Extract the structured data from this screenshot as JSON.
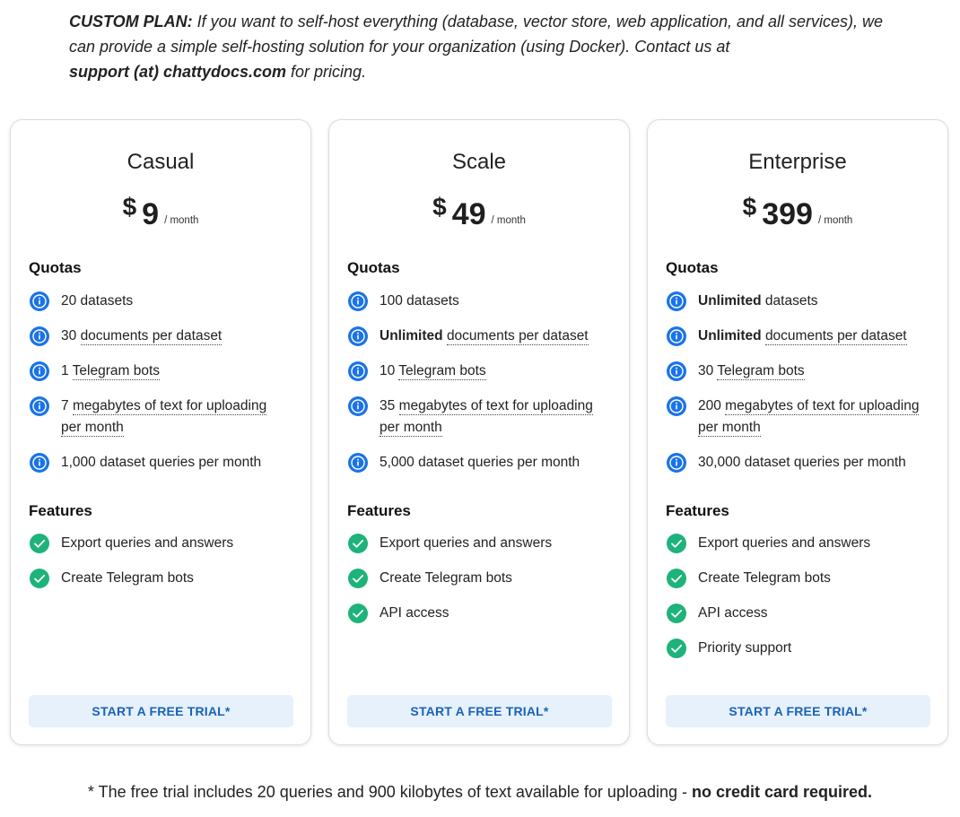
{
  "custom_plan": {
    "label": "CUSTOM PLAN:",
    "text": " If you want to self-host everything (database, vector store, web application, and all services), we can provide a simple self-hosting solution for your organization (using Docker). Contact us at ",
    "email": "support (at) chattydocs.com",
    "suffix": " for pricing."
  },
  "colors": {
    "info_icon": "#1a73e8",
    "check_icon": "#1db37a",
    "cta_bg": "#e6f1fb",
    "cta_text": "#1a62b8"
  },
  "plans": [
    {
      "name": "Casual",
      "currency": "$",
      "price": "9",
      "per": "/ month",
      "quotas_title": "Quotas",
      "quotas": [
        {
          "pre": "20 datasets",
          "bold": "",
          "dotted": "",
          "post": ""
        },
        {
          "pre": "30 ",
          "bold": "",
          "dotted": "documents per dataset",
          "post": ""
        },
        {
          "pre": "1 ",
          "bold": "",
          "dotted": "Telegram bots",
          "post": ""
        },
        {
          "pre": "7 ",
          "bold": "",
          "dotted": "megabytes of text for uploading per month",
          "post": ""
        },
        {
          "pre": "1,000 dataset queries per month",
          "bold": "",
          "dotted": "",
          "post": ""
        }
      ],
      "features_title": "Features",
      "features": [
        "Export queries and answers",
        "Create Telegram bots"
      ],
      "cta": "START A FREE TRIAL*"
    },
    {
      "name": "Scale",
      "currency": "$",
      "price": "49",
      "per": "/ month",
      "quotas_title": "Quotas",
      "quotas": [
        {
          "pre": "100 datasets",
          "bold": "",
          "dotted": "",
          "post": ""
        },
        {
          "pre": "",
          "bold": "Unlimited",
          "dotted": "documents per dataset",
          "post": ""
        },
        {
          "pre": "10 ",
          "bold": "",
          "dotted": "Telegram bots",
          "post": ""
        },
        {
          "pre": "35 ",
          "bold": "",
          "dotted": "megabytes of text for uploading per month",
          "post": ""
        },
        {
          "pre": "5,000 dataset queries per month",
          "bold": "",
          "dotted": "",
          "post": ""
        }
      ],
      "features_title": "Features",
      "features": [
        "Export queries and answers",
        "Create Telegram bots",
        "API access"
      ],
      "cta": "START A FREE TRIAL*"
    },
    {
      "name": "Enterprise",
      "currency": "$",
      "price": "399",
      "per": "/ month",
      "quotas_title": "Quotas",
      "quotas": [
        {
          "pre": "",
          "bold": "Unlimited",
          "dotted": "",
          "post": " datasets"
        },
        {
          "pre": "",
          "bold": "Unlimited",
          "dotted": "documents per dataset",
          "post": ""
        },
        {
          "pre": "30 ",
          "bold": "",
          "dotted": "Telegram bots",
          "post": ""
        },
        {
          "pre": "200 ",
          "bold": "",
          "dotted": "megabytes of text for uploading per month",
          "post": ""
        },
        {
          "pre": "30,000 dataset queries per month",
          "bold": "",
          "dotted": "",
          "post": ""
        }
      ],
      "features_title": "Features",
      "features": [
        "Export queries and answers",
        "Create Telegram bots",
        "API access",
        "Priority support"
      ],
      "cta": "START A FREE TRIAL*"
    }
  ],
  "footnote": {
    "text": "* The free trial includes 20 queries and 900 kilobytes of text available for uploading - ",
    "bold": "no credit card required."
  }
}
